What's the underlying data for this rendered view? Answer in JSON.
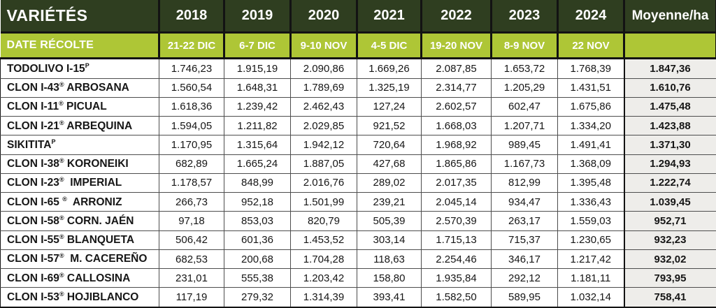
{
  "table": {
    "header": {
      "varieties_label": "VARIÉTÉS",
      "years": [
        "2018",
        "2019",
        "2020",
        "2021",
        "2022",
        "2023",
        "2024"
      ],
      "moyenne_label": "Moyenne/ha",
      "date_recolte_label": "DATE RÉCOLTE",
      "harvest_dates": [
        "21-22 DIC",
        "6-7 DIC",
        "9-10 NOV",
        "4-5 DIC",
        "19-20 NOV",
        "8-9 NOV",
        "22 NOV"
      ]
    },
    "rows": [
      {
        "name_pre": "TODOLIVO I-15",
        "name_sup": "P",
        "name_post": "",
        "values": [
          "1.746,23",
          "1.915,19",
          "2.090,86",
          "1.669,26",
          "2.087,85",
          "1.653,72",
          "1.768,39"
        ],
        "moyenne": "1.847,36"
      },
      {
        "name_pre": "CLON I-43",
        "name_sup": "®",
        "name_post": " ARBOSANA",
        "values": [
          "1.560,54",
          "1.648,31",
          "1.789,69",
          "1.325,19",
          "2.314,77",
          "1.205,29",
          "1.431,51"
        ],
        "moyenne": "1.610,76"
      },
      {
        "name_pre": "CLON I-11",
        "name_sup": "®",
        "name_post": " PICUAL",
        "values": [
          "1.618,36",
          "1.239,42",
          "2.462,43",
          "127,24",
          "2.602,57",
          "602,47",
          "1.675,86"
        ],
        "moyenne": "1.475,48"
      },
      {
        "name_pre": "CLON I-21",
        "name_sup": "®",
        "name_post": " ARBEQUINA",
        "values": [
          "1.594,05",
          "1.211,82",
          "2.029,85",
          "921,52",
          "1.668,03",
          "1.207,71",
          "1.334,20"
        ],
        "moyenne": "1.423,88"
      },
      {
        "name_pre": "SIKITITA",
        "name_sup": "P",
        "name_post": "",
        "values": [
          "1.170,95",
          "1.315,64",
          "1.942,12",
          "720,64",
          "1.968,92",
          "989,45",
          "1.491,41"
        ],
        "moyenne": "1.371,30"
      },
      {
        "name_pre": "CLON I-38",
        "name_sup": "®",
        "name_post": " KORONEIKI",
        "values": [
          "682,89",
          "1.665,24",
          "1.887,05",
          "427,68",
          "1.865,86",
          "1.167,73",
          "1.368,09"
        ],
        "moyenne": "1.294,93"
      },
      {
        "name_pre": "CLON I-23",
        "name_sup": "®",
        "name_post": "  IMPERIAL",
        "values": [
          "1.178,57",
          "848,99",
          "2.016,76",
          "289,02",
          "2.017,35",
          "812,99",
          "1.395,48"
        ],
        "moyenne": "1.222,74"
      },
      {
        "name_pre": "CLON I-65 ",
        "name_sup": "®",
        "name_post": "  ARRONIZ",
        "values": [
          "266,73",
          "952,18",
          "1.501,99",
          "239,21",
          "2.045,14",
          "934,47",
          "1.336,43"
        ],
        "moyenne": "1.039,45"
      },
      {
        "name_pre": "CLON I-58",
        "name_sup": "®",
        "name_post": " CORN. JAÉN",
        "values": [
          "97,18",
          "853,03",
          "820,79",
          "505,39",
          "2.570,39",
          "263,17",
          "1.559,03"
        ],
        "moyenne": "952,71"
      },
      {
        "name_pre": "CLON I-55",
        "name_sup": "®",
        "name_post": " BLANQUETA",
        "values": [
          "506,42",
          "601,36",
          "1.453,52",
          "303,14",
          "1.715,13",
          "715,37",
          "1.230,65"
        ],
        "moyenne": "932,23"
      },
      {
        "name_pre": "CLON I-57",
        "name_sup": "®",
        "name_post": "  M. CACEREÑO",
        "values": [
          "682,53",
          "200,68",
          "1.704,28",
          "118,63",
          "2.254,46",
          "346,17",
          "1.217,42"
        ],
        "moyenne": "932,02"
      },
      {
        "name_pre": "CLON I-69",
        "name_sup": "®",
        "name_post": " CALLOSINA",
        "values": [
          "231,01",
          "555,38",
          "1.203,42",
          "158,80",
          "1.935,84",
          "292,12",
          "1.181,11"
        ],
        "moyenne": "793,95"
      },
      {
        "name_pre": "CLON I-53",
        "name_sup": "®",
        "name_post": " HOJIBLANCO",
        "values": [
          "117,19",
          "279,32",
          "1.314,39",
          "393,41",
          "1.582,50",
          "589,95",
          "1.032,14"
        ],
        "moyenne": "758,41"
      }
    ]
  },
  "colors": {
    "header_dark_green": "#2f3e20",
    "header_lime_green": "#aec636",
    "moyenne_cell_bg": "#eeedea",
    "grid_line": "#4d4d4d",
    "header_border": "#131313",
    "header_text": "#ffffff",
    "body_text": "#161616"
  },
  "chart_data": {
    "type": "table",
    "title": "VARIÉTÉS — rendement par an (kg/ha) et Moyenne/ha",
    "columns": [
      "VARIÉTÉS",
      "2018",
      "2019",
      "2020",
      "2021",
      "2022",
      "2023",
      "2024",
      "Moyenne/ha"
    ],
    "harvest_dates": {
      "2018": "21-22 DIC",
      "2019": "6-7 DIC",
      "2020": "9-10 NOV",
      "2021": "4-5 DIC",
      "2022": "19-20 NOV",
      "2023": "8-9 NOV",
      "2024": "22 NOV"
    },
    "x": [
      2018,
      2019,
      2020,
      2021,
      2022,
      2023,
      2024
    ],
    "series": [
      {
        "name": "TODOLIVO I-15 (P)",
        "values": [
          1746.23,
          1915.19,
          2090.86,
          1669.26,
          2087.85,
          1653.72,
          1768.39
        ],
        "moyenne": 1847.36
      },
      {
        "name": "CLON I-43 ARBOSANA",
        "values": [
          1560.54,
          1648.31,
          1789.69,
          1325.19,
          2314.77,
          1205.29,
          1431.51
        ],
        "moyenne": 1610.76
      },
      {
        "name": "CLON I-11 PICUAL",
        "values": [
          1618.36,
          1239.42,
          2462.43,
          127.24,
          2602.57,
          602.47,
          1675.86
        ],
        "moyenne": 1475.48
      },
      {
        "name": "CLON I-21 ARBEQUINA",
        "values": [
          1594.05,
          1211.82,
          2029.85,
          921.52,
          1668.03,
          1207.71,
          1334.2
        ],
        "moyenne": 1423.88
      },
      {
        "name": "SIKITITA (P)",
        "values": [
          1170.95,
          1315.64,
          1942.12,
          720.64,
          1968.92,
          989.45,
          1491.41
        ],
        "moyenne": 1371.3
      },
      {
        "name": "CLON I-38 KORONEIKI",
        "values": [
          682.89,
          1665.24,
          1887.05,
          427.68,
          1865.86,
          1167.73,
          1368.09
        ],
        "moyenne": 1294.93
      },
      {
        "name": "CLON I-23 IMPERIAL",
        "values": [
          1178.57,
          848.99,
          2016.76,
          289.02,
          2017.35,
          812.99,
          1395.48
        ],
        "moyenne": 1222.74
      },
      {
        "name": "CLON I-65 ARRONIZ",
        "values": [
          266.73,
          952.18,
          1501.99,
          239.21,
          2045.14,
          934.47,
          1336.43
        ],
        "moyenne": 1039.45
      },
      {
        "name": "CLON I-58 CORN. JAÉN",
        "values": [
          97.18,
          853.03,
          820.79,
          505.39,
          2570.39,
          263.17,
          1559.03
        ],
        "moyenne": 952.71
      },
      {
        "name": "CLON I-55 BLANQUETA",
        "values": [
          506.42,
          601.36,
          1453.52,
          303.14,
          1715.13,
          715.37,
          1230.65
        ],
        "moyenne": 932.23
      },
      {
        "name": "CLON I-57 M. CACEREÑO",
        "values": [
          682.53,
          200.68,
          1704.28,
          118.63,
          2254.46,
          346.17,
          1217.42
        ],
        "moyenne": 932.02
      },
      {
        "name": "CLON I-69 CALLOSINA",
        "values": [
          231.01,
          555.38,
          1203.42,
          158.8,
          1935.84,
          292.12,
          1181.11
        ],
        "moyenne": 793.95
      },
      {
        "name": "CLON I-53 HOJIBLANCO",
        "values": [
          117.19,
          279.32,
          1314.39,
          393.41,
          1582.5,
          589.95,
          1032.14
        ],
        "moyenne": 758.41
      }
    ]
  }
}
